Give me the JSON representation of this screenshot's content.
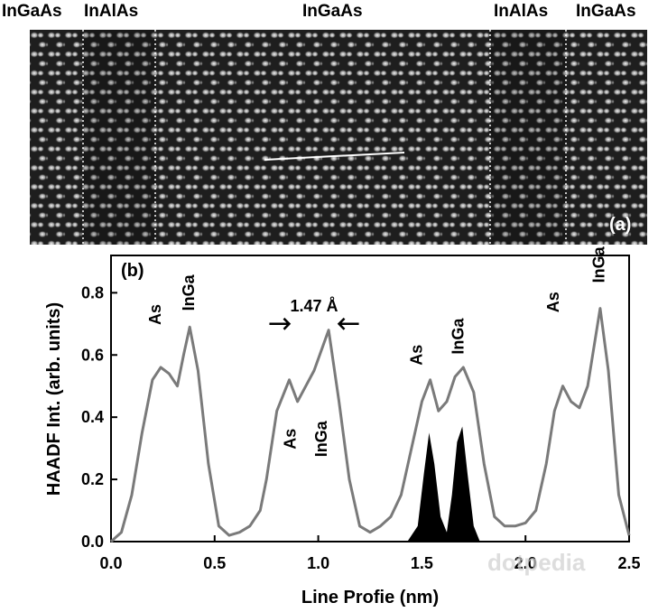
{
  "figure": {
    "top_labels": [
      "InGaAs",
      "InAlAs",
      "InGaAs",
      "InAlAs",
      "InGaAs"
    ],
    "panel_a_label": "(a)",
    "panel_b_label": "(b)",
    "watermark": "dotpedia"
  },
  "chart_data": {
    "type": "line",
    "xlabel": "Line Profie (nm)",
    "ylabel": "HAADF Int. (arb. units)",
    "xlim": [
      0.0,
      2.5
    ],
    "ylim": [
      0.0,
      0.92
    ],
    "xticks": [
      0.0,
      0.5,
      1.0,
      1.5,
      2.0,
      2.5
    ],
    "xtick_labels": [
      "0.0",
      "0.5",
      "1.0",
      "1.5",
      "2.0",
      "2.5"
    ],
    "yticks": [
      0.0,
      0.2,
      0.4,
      0.6,
      0.8
    ],
    "ytick_labels": [
      "0.0",
      "0.2",
      "0.4",
      "0.6",
      "0.8"
    ],
    "series": [
      {
        "values_x": [
          0.0,
          0.05,
          0.1,
          0.15,
          0.2,
          0.24,
          0.28,
          0.32,
          0.35,
          0.38,
          0.42,
          0.47,
          0.52,
          0.57,
          0.62,
          0.67,
          0.72,
          0.75,
          0.8,
          0.86,
          0.9,
          0.94,
          0.98,
          1.05,
          1.1,
          1.15,
          1.2,
          1.25,
          1.3,
          1.35,
          1.4,
          1.45,
          1.5,
          1.54,
          1.58,
          1.62,
          1.66,
          1.7,
          1.75,
          1.8,
          1.85,
          1.9,
          1.95,
          2.0,
          2.05,
          2.1,
          2.14,
          2.18,
          2.22,
          2.26,
          2.3,
          2.36,
          2.4,
          2.45,
          2.5
        ],
        "values_y": [
          0.0,
          0.03,
          0.15,
          0.35,
          0.52,
          0.56,
          0.54,
          0.5,
          0.6,
          0.69,
          0.55,
          0.25,
          0.05,
          0.02,
          0.03,
          0.05,
          0.1,
          0.2,
          0.42,
          0.52,
          0.45,
          0.5,
          0.55,
          0.68,
          0.45,
          0.2,
          0.05,
          0.03,
          0.05,
          0.08,
          0.15,
          0.3,
          0.45,
          0.52,
          0.42,
          0.45,
          0.53,
          0.56,
          0.48,
          0.25,
          0.08,
          0.05,
          0.05,
          0.06,
          0.1,
          0.25,
          0.42,
          0.5,
          0.45,
          0.43,
          0.5,
          0.75,
          0.55,
          0.15,
          0.02
        ]
      },
      {
        "values_x": [
          1.43,
          1.48,
          1.51,
          1.535,
          1.56,
          1.59,
          1.62,
          1.645,
          1.67,
          1.695,
          1.72,
          1.75,
          1.78
        ],
        "values_y": [
          0.0,
          0.05,
          0.22,
          0.35,
          0.25,
          0.08,
          0.03,
          0.15,
          0.32,
          0.37,
          0.22,
          0.05,
          0.0
        ]
      }
    ],
    "annotations": [
      {
        "text": "As",
        "x": 0.24,
        "y": 0.73
      },
      {
        "text": "InGa",
        "x": 0.4,
        "y": 0.8
      },
      {
        "text": "1.47 Å",
        "x": 0.98,
        "y": 0.74
      },
      {
        "text": "As",
        "x": 0.89,
        "y": 0.33
      },
      {
        "text": "InGa",
        "x": 1.04,
        "y": 0.33
      },
      {
        "text": "As",
        "x": 1.5,
        "y": 0.6
      },
      {
        "text": "InGa",
        "x": 1.7,
        "y": 0.66
      },
      {
        "text": "As",
        "x": 2.16,
        "y": 0.77
      },
      {
        "text": "InGa",
        "x": 2.38,
        "y": 0.89
      }
    ]
  }
}
